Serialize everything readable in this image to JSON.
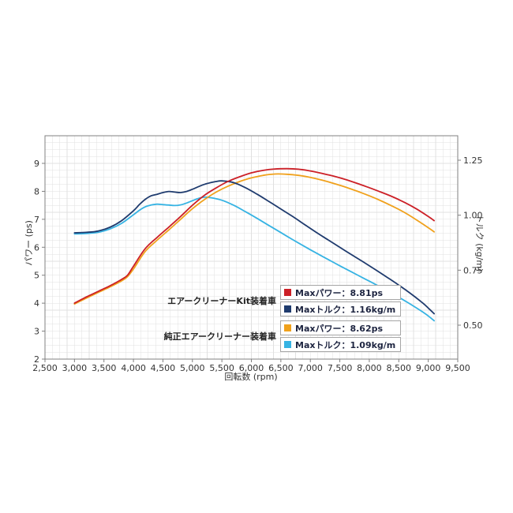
{
  "chart_data": {
    "type": "line",
    "title": "",
    "xlabel": "回転数 (rpm)",
    "ylabel_left": "パワー (ps)",
    "ylabel_right": "トルク (kg/m)",
    "x_ticks": [
      "2,500",
      "3,000",
      "3,500",
      "4,000",
      "4,500",
      "5,000",
      "5,500",
      "6,000",
      "6,500",
      "7,000",
      "7,500",
      "8,000",
      "8,500",
      "9,000",
      "9,500"
    ],
    "x_tick_values": [
      2500,
      3000,
      3500,
      4000,
      4500,
      5000,
      5500,
      6000,
      6500,
      7000,
      7500,
      8000,
      8500,
      9000,
      9500
    ],
    "x_range": [
      2500,
      9500
    ],
    "y_left_ticks": [
      9,
      8,
      7,
      6,
      5,
      4,
      3,
      2
    ],
    "y_left_range": [
      2,
      10
    ],
    "y_right_ticks": [
      "1.25",
      "1.00",
      "0.75",
      "0.50"
    ],
    "y_right_tick_values": [
      1.25,
      1.0,
      0.75,
      0.5
    ],
    "grid": {
      "on": true,
      "x_step_rpm": 125,
      "y_step_ps": 0.25
    },
    "legend_position": "inside-bottom-center",
    "colors": {
      "kit_power": "#cc2027",
      "kit_torque": "#1f3b6e",
      "stock_power": "#f0a11c",
      "stock_torque": "#36b3e3",
      "grid": "#e0e0e0",
      "frame": "#808080",
      "tick_text": "#333333"
    },
    "series": [
      {
        "name": "純正エアークリーナー装着車 Maxトルク",
        "axis": "right",
        "unit": "kg/m",
        "color": "#36b3e3",
        "points": [
          [
            3000,
            0.915
          ],
          [
            3200,
            0.917
          ],
          [
            3400,
            0.922
          ],
          [
            3600,
            0.937
          ],
          [
            3800,
            0.963
          ],
          [
            4000,
            1.002
          ],
          [
            4100,
            1.022
          ],
          [
            4200,
            1.038
          ],
          [
            4300,
            1.046
          ],
          [
            4400,
            1.05
          ],
          [
            4500,
            1.048
          ],
          [
            4600,
            1.046
          ],
          [
            4700,
            1.044
          ],
          [
            4800,
            1.047
          ],
          [
            4900,
            1.055
          ],
          [
            5000,
            1.066
          ],
          [
            5100,
            1.076
          ],
          [
            5200,
            1.082
          ],
          [
            5300,
            1.08
          ],
          [
            5500,
            1.068
          ],
          [
            5700,
            1.045
          ],
          [
            5900,
            1.016
          ],
          [
            6100,
            0.985
          ],
          [
            6300,
            0.953
          ],
          [
            6500,
            0.921
          ],
          [
            6700,
            0.889
          ],
          [
            6900,
            0.858
          ],
          [
            7100,
            0.828
          ],
          [
            7300,
            0.799
          ],
          [
            7500,
            0.77
          ],
          [
            7700,
            0.742
          ],
          [
            7900,
            0.714
          ],
          [
            8100,
            0.686
          ],
          [
            8300,
            0.657
          ],
          [
            8500,
            0.627
          ],
          [
            8700,
            0.595
          ],
          [
            8900,
            0.561
          ],
          [
            9000,
            0.542
          ],
          [
            9100,
            0.52
          ]
        ]
      },
      {
        "name": "純正エアークリーナー装着車 Maxパワー",
        "axis": "left",
        "unit": "ps",
        "color": "#f0a11c",
        "points": [
          [
            3000,
            3.97
          ],
          [
            3200,
            4.18
          ],
          [
            3400,
            4.38
          ],
          [
            3600,
            4.58
          ],
          [
            3800,
            4.8
          ],
          [
            3900,
            4.95
          ],
          [
            4000,
            5.22
          ],
          [
            4200,
            5.85
          ],
          [
            4400,
            6.25
          ],
          [
            4600,
            6.62
          ],
          [
            4800,
            7.0
          ],
          [
            5000,
            7.38
          ],
          [
            5200,
            7.7
          ],
          [
            5400,
            7.97
          ],
          [
            5600,
            8.18
          ],
          [
            5800,
            8.35
          ],
          [
            6000,
            8.48
          ],
          [
            6200,
            8.57
          ],
          [
            6400,
            8.62
          ],
          [
            6600,
            8.61
          ],
          [
            6800,
            8.57
          ],
          [
            7000,
            8.5
          ],
          [
            7200,
            8.4
          ],
          [
            7400,
            8.28
          ],
          [
            7600,
            8.15
          ],
          [
            7800,
            8.0
          ],
          [
            8000,
            7.84
          ],
          [
            8200,
            7.66
          ],
          [
            8400,
            7.46
          ],
          [
            8600,
            7.24
          ],
          [
            8800,
            6.98
          ],
          [
            9000,
            6.7
          ],
          [
            9100,
            6.55
          ]
        ]
      },
      {
        "name": "エアークリーナーKit装着車 Maxトルク",
        "axis": "right",
        "unit": "kg/m",
        "color": "#1f3b6e",
        "points": [
          [
            3000,
            0.92
          ],
          [
            3200,
            0.922
          ],
          [
            3400,
            0.928
          ],
          [
            3600,
            0.945
          ],
          [
            3800,
            0.975
          ],
          [
            4000,
            1.02
          ],
          [
            4100,
            1.048
          ],
          [
            4200,
            1.072
          ],
          [
            4300,
            1.088
          ],
          [
            4400,
            1.095
          ],
          [
            4500,
            1.103
          ],
          [
            4600,
            1.108
          ],
          [
            4700,
            1.105
          ],
          [
            4800,
            1.103
          ],
          [
            4900,
            1.108
          ],
          [
            5000,
            1.118
          ],
          [
            5200,
            1.14
          ],
          [
            5400,
            1.153
          ],
          [
            5500,
            1.156
          ],
          [
            5700,
            1.148
          ],
          [
            5900,
            1.125
          ],
          [
            6100,
            1.095
          ],
          [
            6300,
            1.062
          ],
          [
            6500,
            1.028
          ],
          [
            6700,
            0.994
          ],
          [
            6900,
            0.958
          ],
          [
            7100,
            0.922
          ],
          [
            7300,
            0.888
          ],
          [
            7500,
            0.854
          ],
          [
            7700,
            0.82
          ],
          [
            7900,
            0.787
          ],
          [
            8100,
            0.753
          ],
          [
            8300,
            0.718
          ],
          [
            8500,
            0.682
          ],
          [
            8700,
            0.644
          ],
          [
            8900,
            0.602
          ],
          [
            9000,
            0.578
          ],
          [
            9100,
            0.552
          ]
        ]
      },
      {
        "name": "エアークリーナーKit装着車 Maxパワー",
        "axis": "left",
        "unit": "ps",
        "color": "#cc2027",
        "points": [
          [
            3000,
            4.0
          ],
          [
            3200,
            4.22
          ],
          [
            3400,
            4.42
          ],
          [
            3600,
            4.62
          ],
          [
            3800,
            4.85
          ],
          [
            3900,
            5.0
          ],
          [
            4000,
            5.32
          ],
          [
            4200,
            5.95
          ],
          [
            4400,
            6.35
          ],
          [
            4600,
            6.72
          ],
          [
            4800,
            7.1
          ],
          [
            5000,
            7.5
          ],
          [
            5200,
            7.85
          ],
          [
            5400,
            8.12
          ],
          [
            5600,
            8.35
          ],
          [
            5800,
            8.52
          ],
          [
            6000,
            8.66
          ],
          [
            6200,
            8.75
          ],
          [
            6400,
            8.8
          ],
          [
            6600,
            8.81
          ],
          [
            6800,
            8.79
          ],
          [
            7000,
            8.73
          ],
          [
            7200,
            8.64
          ],
          [
            7400,
            8.54
          ],
          [
            7600,
            8.42
          ],
          [
            7800,
            8.28
          ],
          [
            8000,
            8.13
          ],
          [
            8200,
            7.97
          ],
          [
            8400,
            7.8
          ],
          [
            8600,
            7.6
          ],
          [
            8800,
            7.37
          ],
          [
            9000,
            7.1
          ],
          [
            9100,
            6.95
          ]
        ]
      }
    ]
  },
  "legend": {
    "groups": [
      {
        "label": "エアークリーナーKit装着車",
        "items": [
          {
            "color": "#cc2027",
            "text": "Maxパワー：8.81ps"
          },
          {
            "color": "#1f3b6e",
            "text": "Maxトルク：1.16kg/m"
          }
        ]
      },
      {
        "label": "純正エアークリーナー装着車",
        "items": [
          {
            "color": "#f0a11c",
            "text": "Maxパワー：8.62ps"
          },
          {
            "color": "#36b3e3",
            "text": "Maxトルク：1.09kg/m"
          }
        ]
      }
    ]
  }
}
